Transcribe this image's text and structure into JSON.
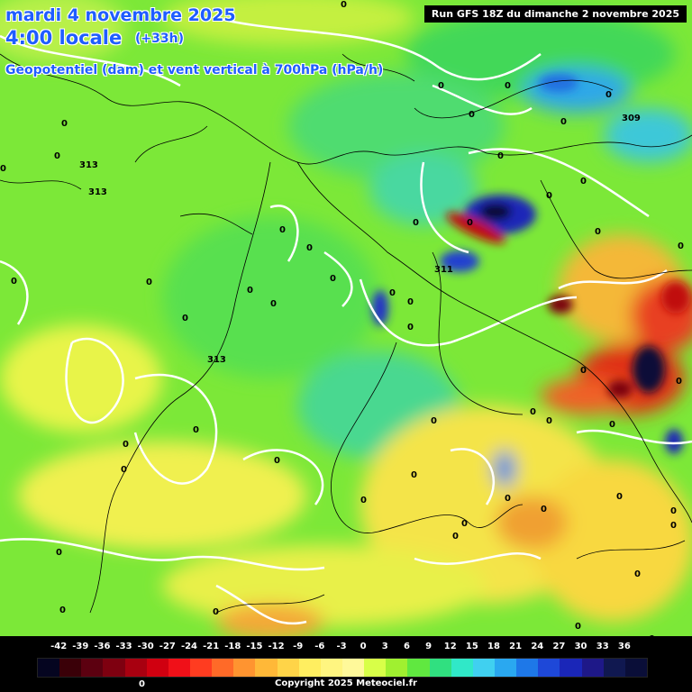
{
  "header": {
    "date_line": "mardi 4 novembre 2025",
    "time_line": "4:00 locale",
    "lead_time": "(+33h)",
    "description": "Geopotentiel (dam) et vent vertical à 700hPa (hPa/h)"
  },
  "run_info": "Run GFS 18Z du dimanche 2 novembre 2025",
  "geopotential_labels": [
    "313",
    "313",
    "313",
    "311",
    "309"
  ],
  "zero_labels": [
    "0"
  ],
  "legend": {
    "ticks": [
      "-42",
      "-39",
      "-36",
      "-33",
      "-30",
      "-27",
      "-24",
      "-21",
      "-18",
      "-15",
      "-12",
      "-9",
      "-6",
      "-3",
      "0",
      "3",
      "6",
      "9",
      "12",
      "15",
      "18",
      "21",
      "24",
      "27",
      "30",
      "33",
      "36"
    ],
    "colors": [
      "#050520",
      "#3a0008",
      "#5c0010",
      "#7e0010",
      "#a80010",
      "#d00010",
      "#f01018",
      "#ff3c20",
      "#ff6a28",
      "#ff9430",
      "#ffb838",
      "#ffd448",
      "#ffee60",
      "#fff580",
      "#fff99a",
      "#d8ff48",
      "#a0f030",
      "#60e840",
      "#30e080",
      "#30e8c8",
      "#40d0f0",
      "#2aa8f0",
      "#1e78e8",
      "#1e48d8",
      "#1a26b8",
      "#1e1888",
      "#101850",
      "#0a0e38"
    ]
  },
  "copyright": "Copyright 2025 Meteociel.fr",
  "bottom_zero": "0"
}
